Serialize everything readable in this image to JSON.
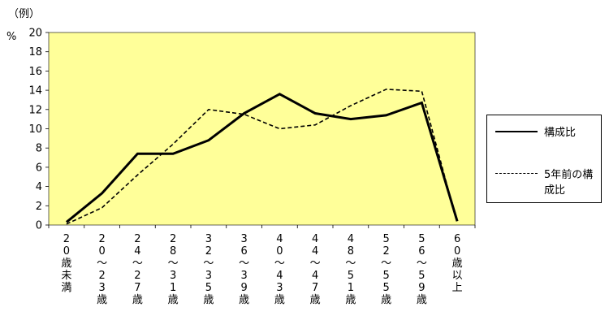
{
  "chart_data": {
    "type": "line",
    "note": "（例）",
    "ylabel": "%",
    "ylim": [
      0,
      20
    ],
    "yticks": [
      "0",
      "2",
      "4",
      "6",
      "8",
      "10",
      "12",
      "14",
      "16",
      "18",
      "20"
    ],
    "categories": [
      "20歳未満",
      "20～23歳",
      "24～27歳",
      "28～31歳",
      "32～35歳",
      "36～39歳",
      "40～43歳",
      "44～47歳",
      "48～51歳",
      "52～55歳",
      "56～59歳",
      "60歳以上"
    ],
    "category_labels": [
      [
        "2",
        "0",
        "歳",
        "未",
        "満"
      ],
      [
        "2",
        "0",
        "～",
        "2",
        "3",
        "歳"
      ],
      [
        "2",
        "4",
        "～",
        "2",
        "7",
        "歳"
      ],
      [
        "2",
        "8",
        "～",
        "3",
        "1",
        "歳"
      ],
      [
        "3",
        "2",
        "～",
        "3",
        "5",
        "歳"
      ],
      [
        "3",
        "6",
        "～",
        "3",
        "9",
        "歳"
      ],
      [
        "4",
        "0",
        "～",
        "4",
        "3",
        "歳"
      ],
      [
        "4",
        "4",
        "～",
        "4",
        "7",
        "歳"
      ],
      [
        "4",
        "8",
        "～",
        "5",
        "1",
        "歳"
      ],
      [
        "5",
        "2",
        "～",
        "5",
        "5",
        "歳"
      ],
      [
        "5",
        "6",
        "～",
        "5",
        "9",
        "歳"
      ],
      [
        "6",
        "0",
        "歳",
        "以",
        "上"
      ]
    ],
    "series": [
      {
        "name": "構成比",
        "values": [
          0.3,
          3.3,
          7.4,
          7.4,
          8.8,
          11.6,
          13.6,
          11.6,
          11.0,
          11.4,
          12.7,
          0.4
        ],
        "style": "solid"
      },
      {
        "name": "5年前の構成比",
        "values": [
          0.1,
          1.8,
          5.2,
          8.4,
          12.0,
          11.5,
          10.0,
          10.4,
          12.4,
          14.1,
          13.9,
          0.2
        ],
        "style": "dashed"
      }
    ],
    "legend_position": "right",
    "grid": false,
    "plot_background": "#FFFF99",
    "line_color": "#000000"
  },
  "legend": {
    "series1_label": "構成比",
    "series2_label_line1": "5年前の構",
    "series2_label_line2": "成比"
  }
}
